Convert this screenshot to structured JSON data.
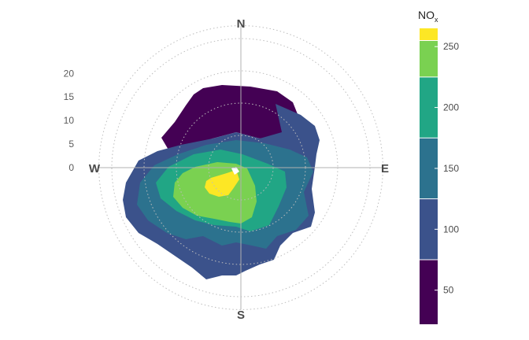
{
  "chart_data": {
    "type": "polar-contour",
    "radial_ticks": [
      "0",
      "5",
      "10",
      "15",
      "20"
    ],
    "radial_range": [
      0,
      22
    ],
    "compass": {
      "n": "N",
      "e": "E",
      "s": "S",
      "w": "W"
    },
    "legend": {
      "title_main": "NO",
      "title_sub": "x",
      "ticks": [
        "50",
        "100",
        "150",
        "200",
        "250"
      ],
      "range": [
        22,
        265
      ],
      "levels": [
        {
          "min": 22,
          "max": 75,
          "color": "#440154"
        },
        {
          "min": 75,
          "max": 125,
          "color": "#3b528b"
        },
        {
          "min": 125,
          "max": 175,
          "color": "#2c728e"
        },
        {
          "min": 175,
          "max": 225,
          "color": "#21a685"
        },
        {
          "min": 225,
          "max": 255,
          "color": "#7ad151"
        },
        {
          "min": 255,
          "max": 265,
          "color": "#fde725"
        }
      ]
    },
    "grid": true
  }
}
